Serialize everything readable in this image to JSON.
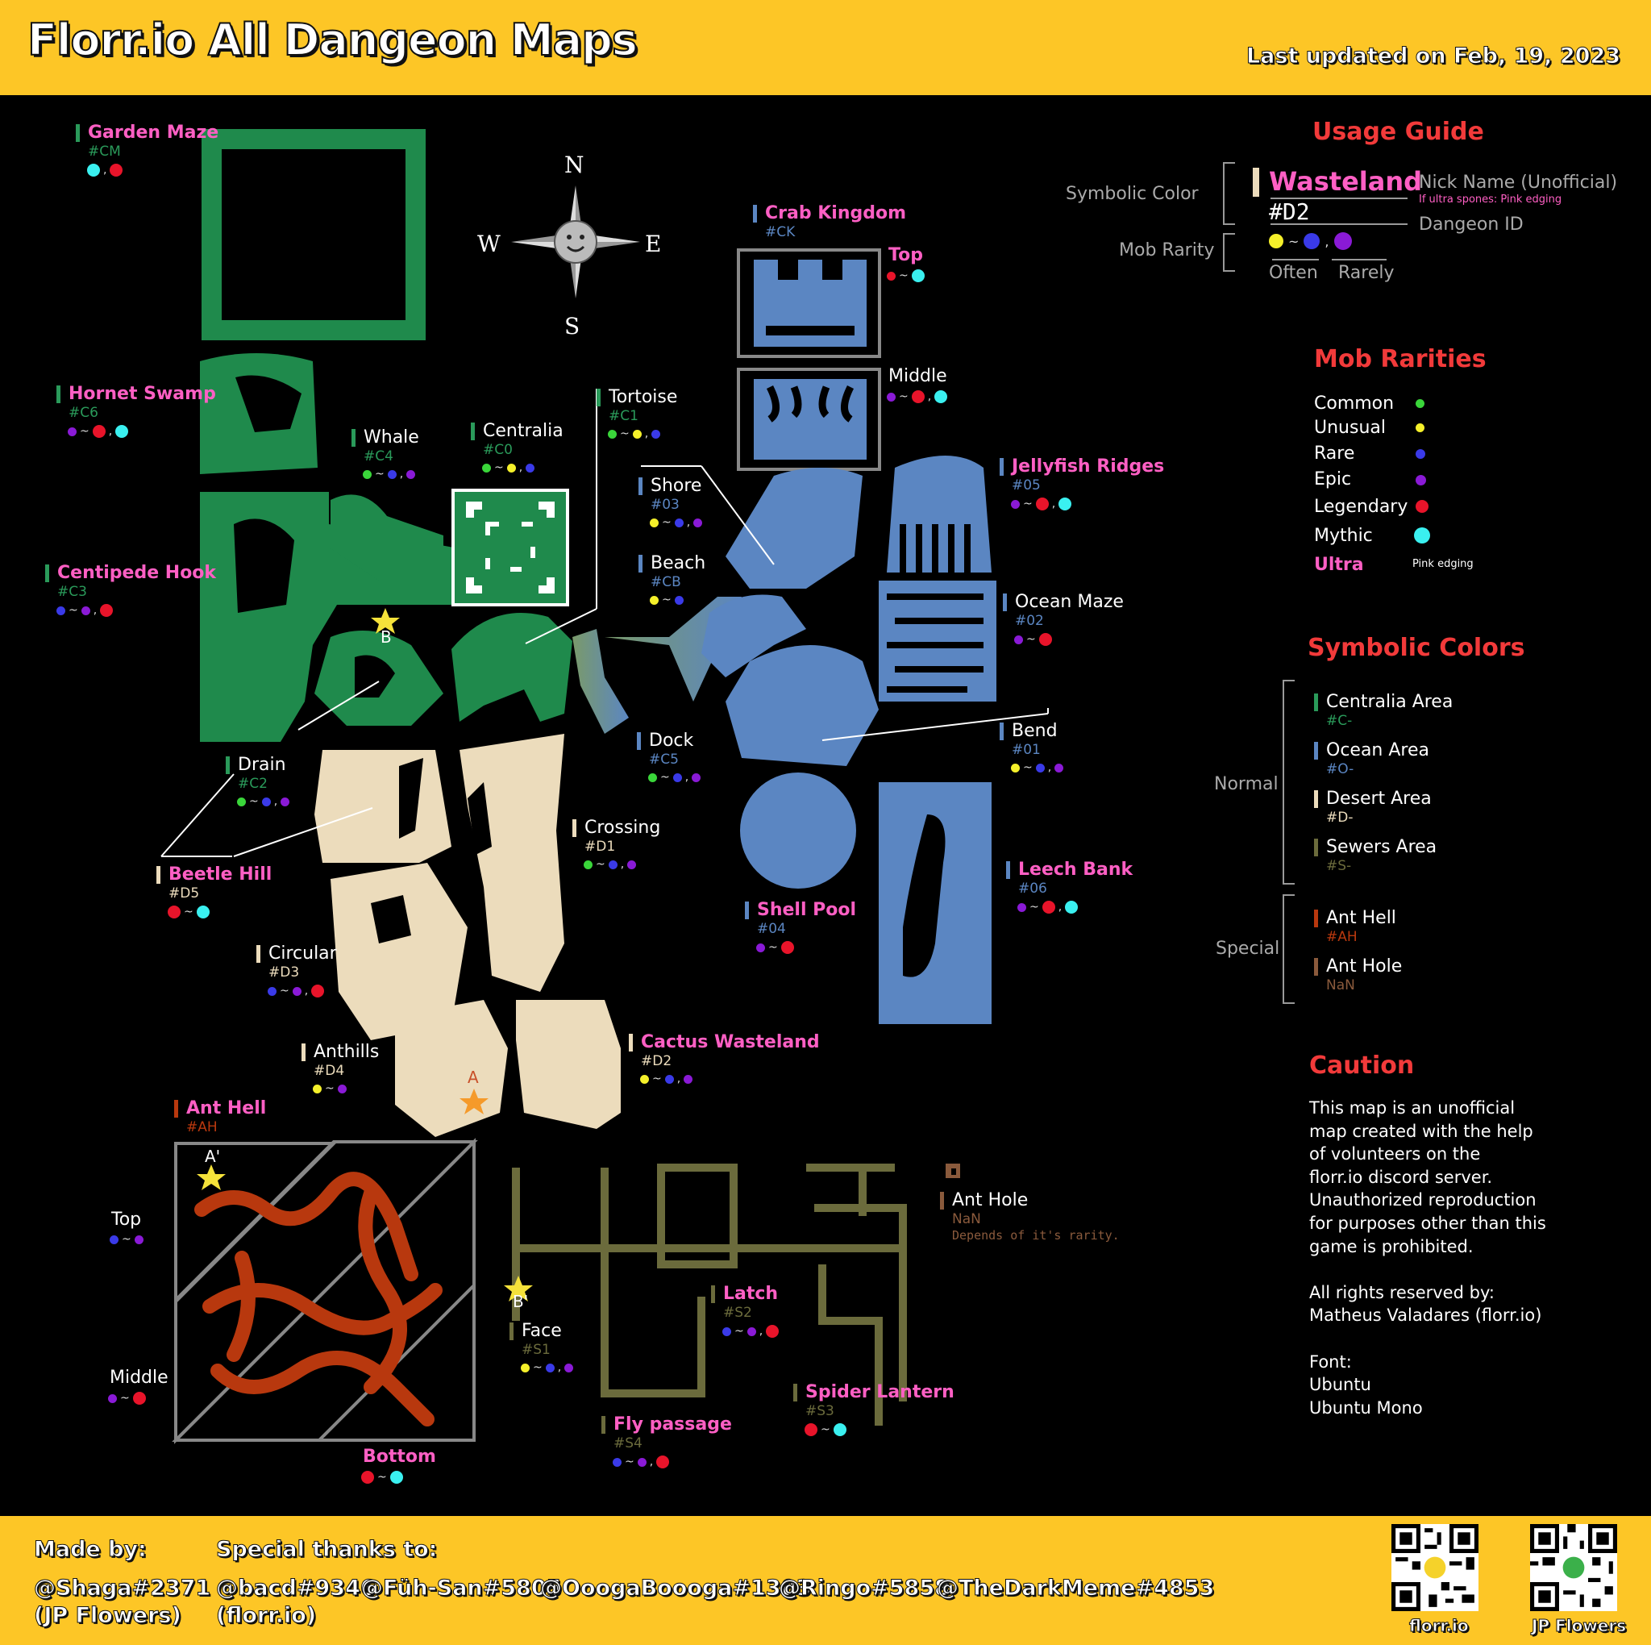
{
  "header": {
    "title": "Florr.io All Dangeon Maps",
    "updated": "Last updated on Feb, 19, 2023"
  },
  "compass": {
    "n": "N",
    "s": "S",
    "e": "E",
    "w": "W"
  },
  "colors": {
    "common": "#3ad63a",
    "unusual": "#f5f02a",
    "rare": "#3a3ae8",
    "epic": "#8a1ad6",
    "legendary": "#e8142a",
    "mythic": "#3af0f0",
    "ultra": "#ff5fc4"
  },
  "zones": {
    "garden_maze": {
      "name": "Garden Maze",
      "id": "#CM",
      "rarities": [
        "mythic",
        "legendary"
      ]
    },
    "hornet_swamp": {
      "name": "Hornet Swamp",
      "id": "#C6",
      "rarities": [
        "epic",
        "legendary",
        "mythic"
      ]
    },
    "whale": {
      "name": "Whale",
      "id": "#C4",
      "rarities": [
        "common",
        "rare",
        "epic"
      ]
    },
    "centralia": {
      "name": "Centralia",
      "id": "#C0",
      "rarities": [
        "common",
        "unusual",
        "rare"
      ]
    },
    "tortoise": {
      "name": "Tortoise",
      "id": "#C1",
      "rarities": [
        "common",
        "unusual",
        "rare"
      ]
    },
    "centipede_hook": {
      "name": "Centipede Hook",
      "id": "#C3",
      "rarities": [
        "rare",
        "epic",
        "legendary"
      ]
    },
    "drain": {
      "name": "Drain",
      "id": "#C2",
      "rarities": [
        "common",
        "rare",
        "epic"
      ]
    },
    "crab_kingdom": {
      "name": "Crab Kingdom",
      "id": "#CK"
    },
    "crab_top": {
      "name": "Top",
      "rarities": [
        "legendary",
        "mythic"
      ]
    },
    "crab_middle": {
      "name": "Middle",
      "rarities": [
        "epic",
        "legendary",
        "mythic"
      ]
    },
    "shore": {
      "name": "Shore",
      "id": "#03",
      "rarities": [
        "unusual",
        "rare",
        "epic"
      ]
    },
    "beach": {
      "name": "Beach",
      "id": "#CB",
      "rarities": [
        "unusual",
        "rare"
      ]
    },
    "jellyfish_ridges": {
      "name": "Jellyfish Ridges",
      "id": "#05",
      "rarities": [
        "epic",
        "legendary",
        "mythic"
      ]
    },
    "ocean_maze": {
      "name": "Ocean Maze",
      "id": "#02",
      "rarities": [
        "epic",
        "legendary"
      ]
    },
    "dock": {
      "name": "Dock",
      "id": "#C5",
      "rarities": [
        "common",
        "rare",
        "epic"
      ]
    },
    "bend": {
      "name": "Bend",
      "id": "#01",
      "rarities": [
        "unusual",
        "rare",
        "epic"
      ]
    },
    "leech_bank": {
      "name": "Leech Bank",
      "id": "#06",
      "rarities": [
        "epic",
        "legendary",
        "mythic"
      ]
    },
    "shell_pool": {
      "name": "Shell Pool",
      "id": "#04",
      "rarities": [
        "epic",
        "legendary"
      ]
    },
    "crossing": {
      "name": "Crossing",
      "id": "#D1",
      "rarities": [
        "common",
        "rare",
        "epic"
      ]
    },
    "beetle_hill": {
      "name": "Beetle Hill",
      "id": "#D5",
      "rarities": [
        "legendary",
        "mythic"
      ]
    },
    "circular": {
      "name": "Circular",
      "id": "#D3",
      "rarities": [
        "rare",
        "epic",
        "legendary"
      ]
    },
    "anthills": {
      "name": "Anthills",
      "id": "#D4",
      "rarities": [
        "unusual",
        "epic"
      ]
    },
    "cactus_wasteland": {
      "name": "Cactus Wasteland",
      "id": "#D2",
      "rarities": [
        "unusual",
        "rare",
        "epic"
      ]
    },
    "ant_hell": {
      "name": "Ant Hell",
      "id": "#AH"
    },
    "ah_top": {
      "name": "Top",
      "rarities": [
        "rare",
        "epic"
      ]
    },
    "ah_middle": {
      "name": "Middle",
      "rarities": [
        "epic",
        "legendary"
      ]
    },
    "ah_bottom": {
      "name": "Bottom",
      "rarities": [
        "legendary",
        "mythic"
      ]
    },
    "ant_hole": {
      "name": "Ant Hole",
      "id": "NaN",
      "note": "Depends of it's rarity."
    },
    "face": {
      "name": "Face",
      "id": "#S1",
      "rarities": [
        "unusual",
        "rare",
        "epic"
      ]
    },
    "latch": {
      "name": "Latch",
      "id": "#S2",
      "rarities": [
        "rare",
        "epic",
        "legendary"
      ]
    },
    "fly_passage": {
      "name": "Fly passage",
      "id": "#S4",
      "rarities": [
        "rare",
        "epic",
        "legendary"
      ]
    },
    "spider_lantern": {
      "name": "Spider Lantern",
      "id": "#S3",
      "rarities": [
        "legendary",
        "mythic"
      ]
    }
  },
  "markers": {
    "b": "B",
    "a": "A",
    "a_prime": "A'",
    "b_prime": "B'"
  },
  "guide": {
    "title": "Usage Guide",
    "symbolic_color": "Symbolic Color",
    "mob_rarity": "Mob Rarity",
    "example_name": "Wasteland",
    "example_id": "#D2",
    "nick_name": "Nick Name (Unofficial)",
    "ultra_note": "If ultra spones: Pink edging",
    "dungeon_id": "Dangeon ID",
    "often": "Often",
    "rarely": "Rarely"
  },
  "rarities": {
    "title": "Mob Rarities",
    "items": [
      {
        "label": "Common",
        "key": "common"
      },
      {
        "label": "Unusual",
        "key": "unusual"
      },
      {
        "label": "Rare",
        "key": "rare"
      },
      {
        "label": "Epic",
        "key": "epic"
      },
      {
        "label": "Legendary",
        "key": "legendary"
      },
      {
        "label": "Mythic",
        "key": "mythic"
      }
    ],
    "ultra_label": "Ultra",
    "ultra_note": "Pink edging"
  },
  "symbolic": {
    "title": "Symbolic Colors",
    "normal": "Normal",
    "special": "Special",
    "items": [
      {
        "label": "Centralia Area",
        "id": "#C-"
      },
      {
        "label": "Ocean Area",
        "id": "#O-"
      },
      {
        "label": "Desert Area",
        "id": "#D-"
      },
      {
        "label": "Sewers Area",
        "id": "#S-"
      },
      {
        "label": "Ant Hell",
        "id": "#AH"
      },
      {
        "label": "Ant Hole",
        "id": "NaN"
      }
    ]
  },
  "caution": {
    "title": "Caution",
    "lines": [
      "This map is an unofficial",
      "map created with the help",
      "of volunteers on the",
      "florr.io discord server.",
      "Unauthorized reproduction",
      "for purposes other than this",
      "game is prohibited.",
      "",
      "All rights reserved by:",
      "Matheus Valadares (florr.io)",
      "",
      "Font:",
      "Ubuntu",
      "Ubuntu Mono"
    ]
  },
  "footer": {
    "made_by": "Made by:",
    "author": "@Shaga#2371",
    "author_team": "(JP Flowers)",
    "thanks": "Special thanks to:",
    "thanks_list": [
      "@bacd#9346",
      "@Füh-San#5805",
      "@OoogaBoooga#1303",
      "@Ringo#5858",
      "@TheDarkMeme#4853"
    ],
    "thanks_sub": "(florr.io)",
    "qr1": "florr.io",
    "qr2": "JP Flowers"
  }
}
